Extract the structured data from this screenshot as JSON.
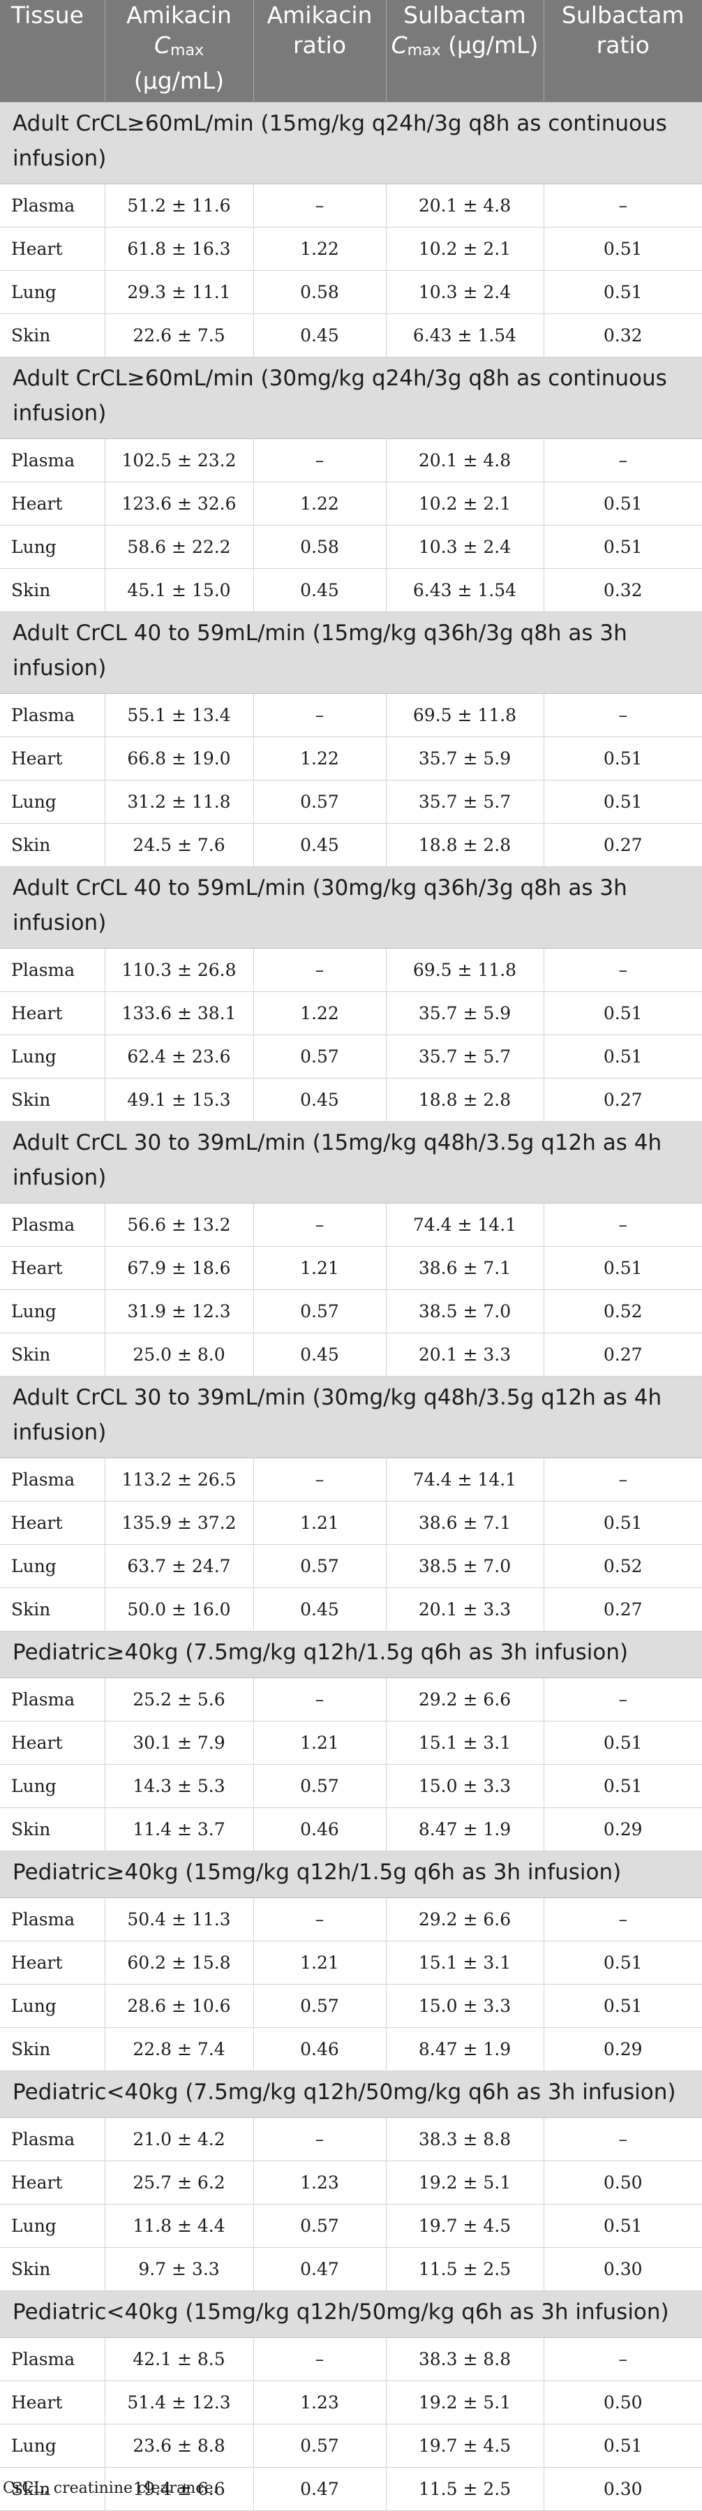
{
  "headers": {
    "tissue": "Tissue",
    "amikacin_cmax": "Amikacin",
    "amikacin_cmax_c": "C",
    "amikacin_cmax_sub": "max",
    "amikacin_cmax_unit": "(µg/mL)",
    "amikacin_ratio": "Amikacin ratio",
    "sulbactam_cmax": "Sulbactam",
    "sulbactam_cmax_c": "C",
    "sulbactam_cmax_sub": "max",
    "sulbactam_cmax_unit": "(µg/mL)",
    "sulbactam_ratio": "Sulbactam ratio"
  },
  "sections": [
    {
      "title": "Adult CrCL≥60mL/min (15mg/kg q24h/3g q8h as continuous infusion)",
      "rows": [
        {
          "tissue": "Plasma",
          "amikacin_cmax": "51.2 ± 11.6",
          "amikacin_ratio": "–",
          "sulbactam_cmax": "20.1 ± 4.8",
          "sulbactam_ratio": "–"
        },
        {
          "tissue": "Heart",
          "amikacin_cmax": "61.8 ± 16.3",
          "amikacin_ratio": "1.22",
          "sulbactam_cmax": "10.2 ± 2.1",
          "sulbactam_ratio": "0.51"
        },
        {
          "tissue": "Lung",
          "amikacin_cmax": "29.3 ± 11.1",
          "amikacin_ratio": "0.58",
          "sulbactam_cmax": "10.3 ± 2.4",
          "sulbactam_ratio": "0.51"
        },
        {
          "tissue": "Skin",
          "amikacin_cmax": "22.6 ± 7.5",
          "amikacin_ratio": "0.45",
          "sulbactam_cmax": "6.43 ± 1.54",
          "sulbactam_ratio": "0.32"
        }
      ]
    },
    {
      "title": "Adult CrCL≥60mL/min (30mg/kg q24h/3g q8h as continuous infusion)",
      "rows": [
        {
          "tissue": "Plasma",
          "amikacin_cmax": "102.5 ± 23.2",
          "amikacin_ratio": "–",
          "sulbactam_cmax": "20.1 ± 4.8",
          "sulbactam_ratio": "–"
        },
        {
          "tissue": "Heart",
          "amikacin_cmax": "123.6 ± 32.6",
          "amikacin_ratio": "1.22",
          "sulbactam_cmax": "10.2 ± 2.1",
          "sulbactam_ratio": "0.51"
        },
        {
          "tissue": "Lung",
          "amikacin_cmax": "58.6 ± 22.2",
          "amikacin_ratio": "0.58",
          "sulbactam_cmax": "10.3 ± 2.4",
          "sulbactam_ratio": "0.51"
        },
        {
          "tissue": "Skin",
          "amikacin_cmax": "45.1 ± 15.0",
          "amikacin_ratio": "0.45",
          "sulbactam_cmax": "6.43 ± 1.54",
          "sulbactam_ratio": "0.32"
        }
      ]
    },
    {
      "title": "Adult CrCL 40 to 59mL/min (15mg/kg q36h/3g q8h as 3h infusion)",
      "rows": [
        {
          "tissue": "Plasma",
          "amikacin_cmax": "55.1 ± 13.4",
          "amikacin_ratio": "–",
          "sulbactam_cmax": "69.5 ± 11.8",
          "sulbactam_ratio": "–"
        },
        {
          "tissue": "Heart",
          "amikacin_cmax": "66.8 ± 19.0",
          "amikacin_ratio": "1.22",
          "sulbactam_cmax": "35.7 ± 5.9",
          "sulbactam_ratio": "0.51"
        },
        {
          "tissue": "Lung",
          "amikacin_cmax": "31.2 ± 11.8",
          "amikacin_ratio": "0.57",
          "sulbactam_cmax": "35.7 ± 5.7",
          "sulbactam_ratio": "0.51"
        },
        {
          "tissue": "Skin",
          "amikacin_cmax": "24.5 ± 7.6",
          "amikacin_ratio": "0.45",
          "sulbactam_cmax": "18.8 ± 2.8",
          "sulbactam_ratio": "0.27"
        }
      ]
    },
    {
      "title": "Adult CrCL 40 to 59mL/min (30mg/kg q36h/3g q8h as 3h infusion)",
      "rows": [
        {
          "tissue": "Plasma",
          "amikacin_cmax": "110.3 ± 26.8",
          "amikacin_ratio": "–",
          "sulbactam_cmax": "69.5 ± 11.8",
          "sulbactam_ratio": "–"
        },
        {
          "tissue": "Heart",
          "amikacin_cmax": "133.6 ± 38.1",
          "amikacin_ratio": "1.22",
          "sulbactam_cmax": "35.7 ± 5.9",
          "sulbactam_ratio": "0.51"
        },
        {
          "tissue": "Lung",
          "amikacin_cmax": "62.4 ± 23.6",
          "amikacin_ratio": "0.57",
          "sulbactam_cmax": "35.7 ± 5.7",
          "sulbactam_ratio": "0.51"
        },
        {
          "tissue": "Skin",
          "amikacin_cmax": "49.1 ± 15.3",
          "amikacin_ratio": "0.45",
          "sulbactam_cmax": "18.8 ± 2.8",
          "sulbactam_ratio": "0.27"
        }
      ]
    },
    {
      "title": "Adult CrCL 30 to 39mL/min (15mg/kg q48h/3.5g q12h as 4h infusion)",
      "rows": [
        {
          "tissue": "Plasma",
          "amikacin_cmax": "56.6 ± 13.2",
          "amikacin_ratio": "–",
          "sulbactam_cmax": "74.4 ± 14.1",
          "sulbactam_ratio": "–"
        },
        {
          "tissue": "Heart",
          "amikacin_cmax": "67.9 ± 18.6",
          "amikacin_ratio": "1.21",
          "sulbactam_cmax": "38.6 ± 7.1",
          "sulbactam_ratio": "0.51"
        },
        {
          "tissue": "Lung",
          "amikacin_cmax": "31.9 ± 12.3",
          "amikacin_ratio": "0.57",
          "sulbactam_cmax": "38.5 ± 7.0",
          "sulbactam_ratio": "0.52"
        },
        {
          "tissue": "Skin",
          "amikacin_cmax": "25.0 ± 8.0",
          "amikacin_ratio": "0.45",
          "sulbactam_cmax": "20.1 ± 3.3",
          "sulbactam_ratio": "0.27"
        }
      ]
    },
    {
      "title": "Adult CrCL 30 to 39mL/min (30mg/kg q48h/3.5g q12h as 4h infusion)",
      "rows": [
        {
          "tissue": "Plasma",
          "amikacin_cmax": "113.2 ± 26.5",
          "amikacin_ratio": "–",
          "sulbactam_cmax": "74.4 ± 14.1",
          "sulbactam_ratio": "–"
        },
        {
          "tissue": "Heart",
          "amikacin_cmax": "135.9 ± 37.2",
          "amikacin_ratio": "1.21",
          "sulbactam_cmax": "38.6 ± 7.1",
          "sulbactam_ratio": "0.51"
        },
        {
          "tissue": "Lung",
          "amikacin_cmax": "63.7 ± 24.7",
          "amikacin_ratio": "0.57",
          "sulbactam_cmax": "38.5 ± 7.0",
          "sulbactam_ratio": "0.52"
        },
        {
          "tissue": "Skin",
          "amikacin_cmax": "50.0 ± 16.0",
          "amikacin_ratio": "0.45",
          "sulbactam_cmax": "20.1 ± 3.3",
          "sulbactam_ratio": "0.27"
        }
      ]
    },
    {
      "title": "Pediatric≥40kg (7.5mg/kg q12h/1.5g q6h as 3h infusion)",
      "rows": [
        {
          "tissue": "Plasma",
          "amikacin_cmax": "25.2 ± 5.6",
          "amikacin_ratio": "–",
          "sulbactam_cmax": "29.2 ± 6.6",
          "sulbactam_ratio": "–"
        },
        {
          "tissue": "Heart",
          "amikacin_cmax": "30.1 ± 7.9",
          "amikacin_ratio": "1.21",
          "sulbactam_cmax": "15.1 ± 3.1",
          "sulbactam_ratio": "0.51"
        },
        {
          "tissue": "Lung",
          "amikacin_cmax": "14.3 ± 5.3",
          "amikacin_ratio": "0.57",
          "sulbactam_cmax": "15.0 ± 3.3",
          "sulbactam_ratio": "0.51"
        },
        {
          "tissue": "Skin",
          "amikacin_cmax": "11.4 ± 3.7",
          "amikacin_ratio": "0.46",
          "sulbactam_cmax": "8.47 ± 1.9",
          "sulbactam_ratio": "0.29"
        }
      ]
    },
    {
      "title": "Pediatric≥40kg (15mg/kg q12h/1.5g q6h as 3h infusion)",
      "rows": [
        {
          "tissue": "Plasma",
          "amikacin_cmax": "50.4 ± 11.3",
          "amikacin_ratio": "–",
          "sulbactam_cmax": "29.2 ± 6.6",
          "sulbactam_ratio": "–"
        },
        {
          "tissue": "Heart",
          "amikacin_cmax": "60.2 ± 15.8",
          "amikacin_ratio": "1.21",
          "sulbactam_cmax": "15.1 ± 3.1",
          "sulbactam_ratio": "0.51"
        },
        {
          "tissue": "Lung",
          "amikacin_cmax": "28.6 ± 10.6",
          "amikacin_ratio": "0.57",
          "sulbactam_cmax": "15.0 ± 3.3",
          "sulbactam_ratio": "0.51"
        },
        {
          "tissue": "Skin",
          "amikacin_cmax": "22.8 ± 7.4",
          "amikacin_ratio": "0.46",
          "sulbactam_cmax": "8.47 ± 1.9",
          "sulbactam_ratio": "0.29"
        }
      ]
    },
    {
      "title": "Pediatric<40kg (7.5mg/kg q12h/50mg/kg q6h as 3h infusion)",
      "rows": [
        {
          "tissue": "Plasma",
          "amikacin_cmax": "21.0 ± 4.2",
          "amikacin_ratio": "–",
          "sulbactam_cmax": "38.3 ± 8.8",
          "sulbactam_ratio": "–"
        },
        {
          "tissue": "Heart",
          "amikacin_cmax": "25.7 ± 6.2",
          "amikacin_ratio": "1.23",
          "sulbactam_cmax": "19.2 ± 5.1",
          "sulbactam_ratio": "0.50"
        },
        {
          "tissue": "Lung",
          "amikacin_cmax": "11.8 ± 4.4",
          "amikacin_ratio": "0.57",
          "sulbactam_cmax": "19.7 ± 4.5",
          "sulbactam_ratio": "0.51"
        },
        {
          "tissue": "Skin",
          "amikacin_cmax": "9.7 ± 3.3",
          "amikacin_ratio": "0.47",
          "sulbactam_cmax": "11.5 ± 2.5",
          "sulbactam_ratio": "0.30"
        }
      ]
    },
    {
      "title": "Pediatric<40kg (15mg/kg q12h/50mg/kg q6h as 3h infusion)",
      "rows": [
        {
          "tissue": "Plasma",
          "amikacin_cmax": "42.1 ± 8.5",
          "amikacin_ratio": "–",
          "sulbactam_cmax": "38.3 ± 8.8",
          "sulbactam_ratio": "–"
        },
        {
          "tissue": "Heart",
          "amikacin_cmax": "51.4 ± 12.3",
          "amikacin_ratio": "1.23",
          "sulbactam_cmax": "19.2 ± 5.1",
          "sulbactam_ratio": "0.50"
        },
        {
          "tissue": "Lung",
          "amikacin_cmax": "23.6 ± 8.8",
          "amikacin_ratio": "0.57",
          "sulbactam_cmax": "19.7 ± 4.5",
          "sulbactam_ratio": "0.51"
        },
        {
          "tissue": "Skin",
          "amikacin_cmax": "19.4 ± 6.6",
          "amikacin_ratio": "0.47",
          "sulbactam_cmax": "11.5 ± 2.5",
          "sulbactam_ratio": "0.30"
        }
      ]
    }
  ],
  "footnote": "CrCL, creatinine clearance."
}
